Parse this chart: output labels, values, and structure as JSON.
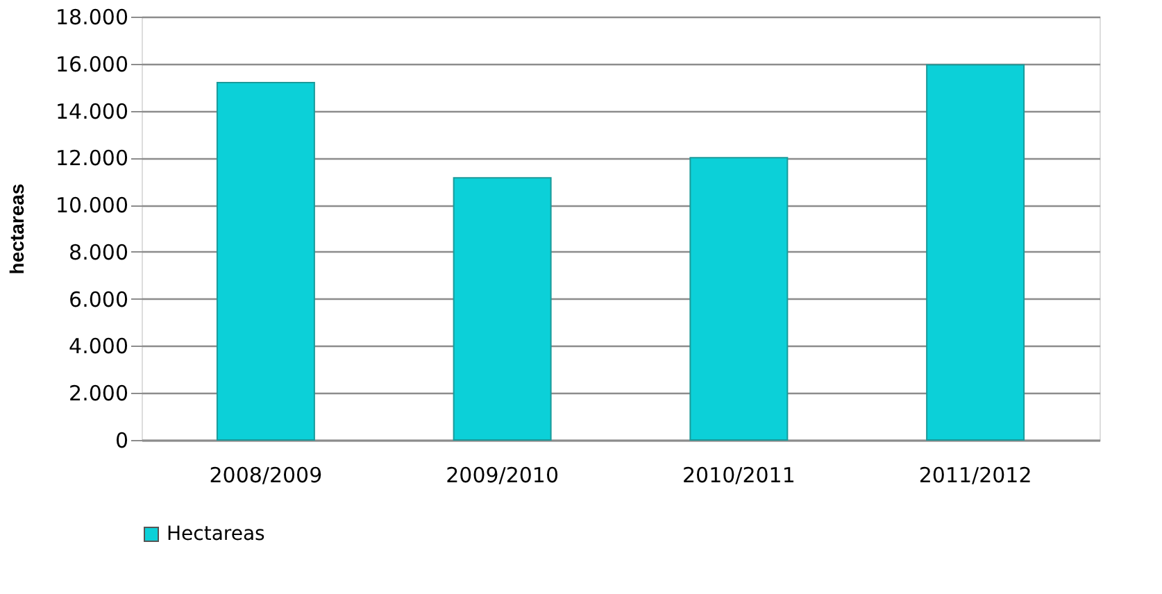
{
  "chart_data": {
    "type": "bar",
    "ylabel": "hectareas",
    "categories": [
      "2008/2009",
      "2009/2010",
      "2010/2011",
      "2011/2012"
    ],
    "series": [
      {
        "name": "Hectareas",
        "color": "#0cd0d8",
        "values": [
          15200,
          11150,
          12000,
          15950
        ]
      }
    ],
    "ylim": [
      0,
      18000
    ],
    "yticks": [
      0,
      {
        "value": 2000,
        "label": "2.000"
      },
      {
        "value": 4000,
        "label": "4.000"
      },
      {
        "value": 6000,
        "label": "6.000"
      },
      {
        "value": 8000,
        "label": "8.000"
      },
      {
        "value": 10000,
        "label": "10.000"
      },
      {
        "value": 12000,
        "label": "12.000"
      },
      {
        "value": 14000,
        "label": "14.000"
      },
      {
        "value": 16000,
        "label": "16.000"
      },
      {
        "value": 18000,
        "label": "18.000"
      }
    ],
    "grid": "y",
    "legend": "bottom"
  }
}
